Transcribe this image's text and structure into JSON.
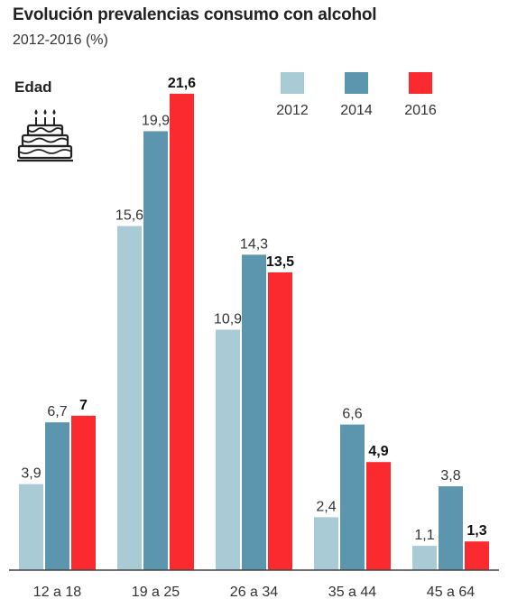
{
  "title": "Evolución prevalencias consumo con alcohol",
  "subtitle": "2012-2016 (%)",
  "section_label": "Edad",
  "icon": "birthday-cake-icon",
  "colors": {
    "2012": "#a9cbd5",
    "2014": "#5b96ae",
    "2016": "#fb2a2f",
    "axis": "#444444"
  },
  "chart_data": {
    "type": "bar",
    "title": "Evolución prevalencias consumo con alcohol",
    "subtitle": "2012-2016 (%)",
    "xlabel": "Edad",
    "ylabel": "",
    "ylim": [
      0,
      22
    ],
    "grid": false,
    "legend_position": "top-right",
    "categories": [
      "12 a 18",
      "19 a 25",
      "26 a 34",
      "35 a 44",
      "45 a 64"
    ],
    "series": [
      {
        "name": "2012",
        "values": [
          3.9,
          15.6,
          10.9,
          2.4,
          1.1
        ],
        "labels": [
          "3,9",
          "15,6",
          "10,9",
          "2,4",
          "1,1"
        ]
      },
      {
        "name": "2014",
        "values": [
          6.7,
          19.9,
          14.3,
          6.6,
          3.8
        ],
        "labels": [
          "6,7",
          "19,9",
          "14,3",
          "6,6",
          "3,8"
        ]
      },
      {
        "name": "2016",
        "values": [
          7,
          21.6,
          13.5,
          4.9,
          1.3
        ],
        "labels": [
          "7",
          "21,6",
          "13,5",
          "4,9",
          "1,3"
        ]
      }
    ]
  }
}
